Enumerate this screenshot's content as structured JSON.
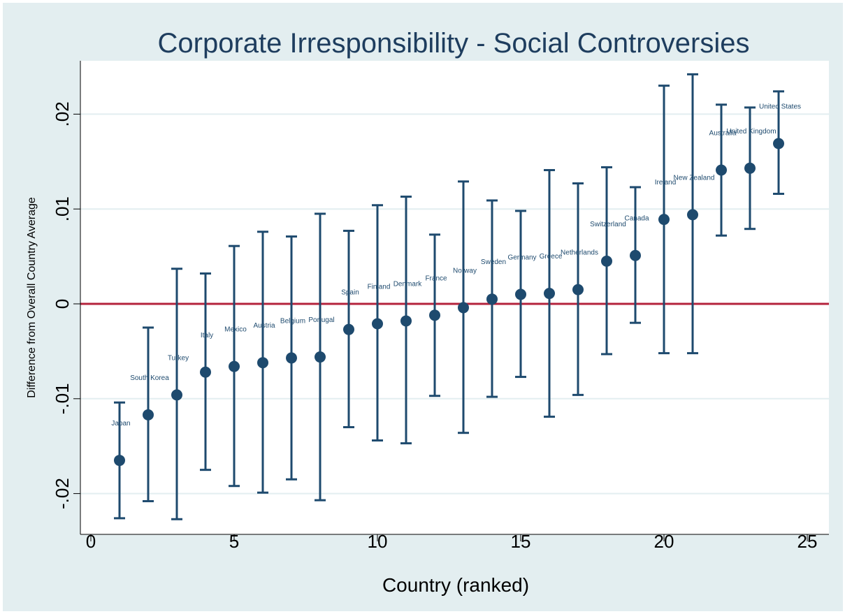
{
  "chart_data": {
    "type": "scatter",
    "title": "Corporate Irresponsibility - Social Controversies",
    "xlabel": "Country (ranked)",
    "ylabel": "Difference from Overall Country Average",
    "xlim": [
      0,
      25
    ],
    "ylim": [
      -0.0243,
      0.0255
    ],
    "xticks": [
      0,
      5,
      10,
      15,
      20,
      25
    ],
    "yticks": [
      -0.02,
      -0.01,
      0,
      0.01,
      0.02
    ],
    "ytick_labels": [
      "-.02",
      "-.01",
      "0",
      ".01",
      ".02"
    ],
    "reference_line": {
      "y": 0,
      "color": "#b4233c"
    },
    "grid": "horizontal",
    "colors": {
      "background": "#e3eef0",
      "plot_background": "#ffffff",
      "marker": "#1e4a6e",
      "grid": "#e3eef0",
      "title": "#1e3d5e"
    },
    "points": [
      {
        "x": 1,
        "y": -0.0165,
        "lo": -0.0226,
        "hi": -0.0104,
        "label": "Japan"
      },
      {
        "x": 2,
        "y": -0.0117,
        "lo": -0.0208,
        "hi": -0.0025,
        "label": "South Korea"
      },
      {
        "x": 3,
        "y": -0.0096,
        "lo": -0.0227,
        "hi": 0.0037,
        "label": "Turkey"
      },
      {
        "x": 4,
        "y": -0.0072,
        "lo": -0.0175,
        "hi": 0.0032,
        "label": "Italy"
      },
      {
        "x": 5,
        "y": -0.0066,
        "lo": -0.0192,
        "hi": 0.0061,
        "label": "Mexico"
      },
      {
        "x": 6,
        "y": -0.0062,
        "lo": -0.0199,
        "hi": 0.0076,
        "label": "Austria"
      },
      {
        "x": 7,
        "y": -0.0057,
        "lo": -0.0185,
        "hi": 0.0071,
        "label": "Belgium"
      },
      {
        "x": 8,
        "y": -0.0056,
        "lo": -0.0207,
        "hi": 0.0095,
        "label": "Portugal"
      },
      {
        "x": 9,
        "y": -0.0027,
        "lo": -0.013,
        "hi": 0.0077,
        "label": "Spain"
      },
      {
        "x": 10,
        "y": -0.0021,
        "lo": -0.0144,
        "hi": 0.0104,
        "label": "Finland"
      },
      {
        "x": 11,
        "y": -0.0018,
        "lo": -0.0147,
        "hi": 0.0113,
        "label": "Denmark"
      },
      {
        "x": 12,
        "y": -0.0012,
        "lo": -0.0097,
        "hi": 0.0073,
        "label": "France"
      },
      {
        "x": 13,
        "y": -0.0004,
        "lo": -0.0136,
        "hi": 0.0129,
        "label": "Norway"
      },
      {
        "x": 14,
        "y": 0.0005,
        "lo": -0.0098,
        "hi": 0.0109,
        "label": "Sweden"
      },
      {
        "x": 15,
        "y": 0.001,
        "lo": -0.0077,
        "hi": 0.0098,
        "label": "Germany"
      },
      {
        "x": 16,
        "y": 0.0011,
        "lo": -0.0119,
        "hi": 0.0141,
        "label": "Greece"
      },
      {
        "x": 17,
        "y": 0.0015,
        "lo": -0.0096,
        "hi": 0.0127,
        "label": "Netherlands"
      },
      {
        "x": 18,
        "y": 0.0045,
        "lo": -0.0053,
        "hi": 0.0144,
        "label": "Switzerland"
      },
      {
        "x": 19,
        "y": 0.0051,
        "lo": -0.002,
        "hi": 0.0123,
        "label": "Canada"
      },
      {
        "x": 20,
        "y": 0.0089,
        "lo": -0.0052,
        "hi": 0.023,
        "label": "Ireland"
      },
      {
        "x": 21,
        "y": 0.0094,
        "lo": -0.0052,
        "hi": 0.0242,
        "label": "New Zealand"
      },
      {
        "x": 22,
        "y": 0.0141,
        "lo": 0.0072,
        "hi": 0.021,
        "label": "Australia"
      },
      {
        "x": 23,
        "y": 0.0143,
        "lo": 0.0079,
        "hi": 0.0207,
        "label": "United Kingdom"
      },
      {
        "x": 24,
        "y": 0.0169,
        "lo": 0.0116,
        "hi": 0.0224,
        "label": "United States"
      }
    ]
  }
}
